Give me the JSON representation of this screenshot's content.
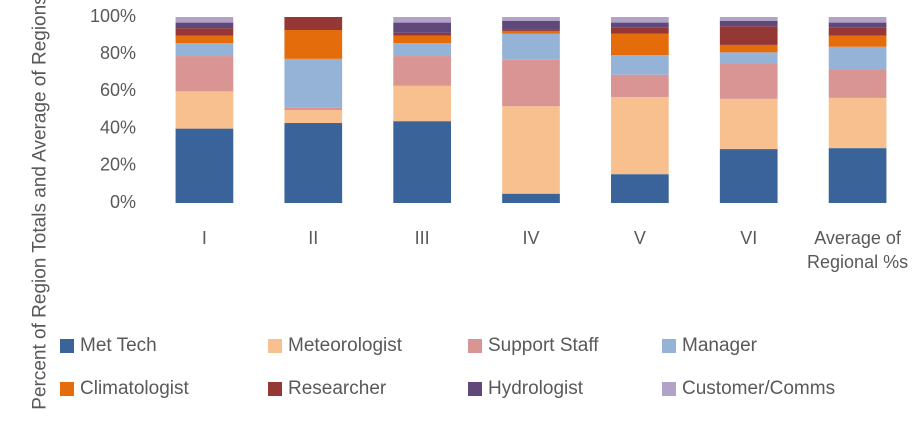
{
  "chart_data": {
    "type": "stacked_bar",
    "y_label": "Percent of Region Totals and Average of Regions",
    "categories": [
      "I",
      "II",
      "III",
      "IV",
      "V",
      "VI",
      "Average of Regional %s"
    ],
    "series": [
      {
        "name": "Met Tech",
        "color": "#3a6499",
        "values": [
          40,
          43,
          44,
          5,
          15.5,
          29,
          29.5
        ]
      },
      {
        "name": "Meteorologist",
        "color": "#f9c08f",
        "values": [
          20,
          7,
          19,
          47,
          41.5,
          27,
          27
        ]
      },
      {
        "name": "Support Staff",
        "color": "#d99594",
        "values": [
          19,
          1.5,
          16,
          25,
          12,
          19,
          15.5
        ]
      },
      {
        "name": "Manager",
        "color": "#95b3d7",
        "values": [
          7,
          26,
          7,
          14,
          10.5,
          6,
          12
        ]
      },
      {
        "name": "Climatologist",
        "color": "#e46c0a",
        "values": [
          4,
          15.5,
          4,
          1.5,
          11.5,
          4,
          6
        ]
      },
      {
        "name": "Researcher",
        "color": "#953735",
        "values": [
          4,
          7,
          1.5,
          1,
          3.5,
          10,
          4.5
        ]
      },
      {
        "name": "Hydrologist",
        "color": "#5f497a",
        "values": [
          3,
          0,
          5.5,
          4.5,
          2.5,
          3,
          2.5
        ]
      },
      {
        "name": "Customer/Comms",
        "color": "#b3a2c7",
        "values": [
          3,
          0,
          3,
          2,
          3,
          2,
          3
        ]
      }
    ],
    "ylim": [
      0,
      100
    ],
    "yticks": [
      {
        "value": 0,
        "label": "0%"
      },
      {
        "value": 20,
        "label": "20%"
      },
      {
        "value": 40,
        "label": "40%"
      },
      {
        "value": 60,
        "label": "60%"
      },
      {
        "value": 80,
        "label": "80%"
      },
      {
        "value": 100,
        "label": "100%"
      }
    ],
    "legend": "bottom"
  }
}
